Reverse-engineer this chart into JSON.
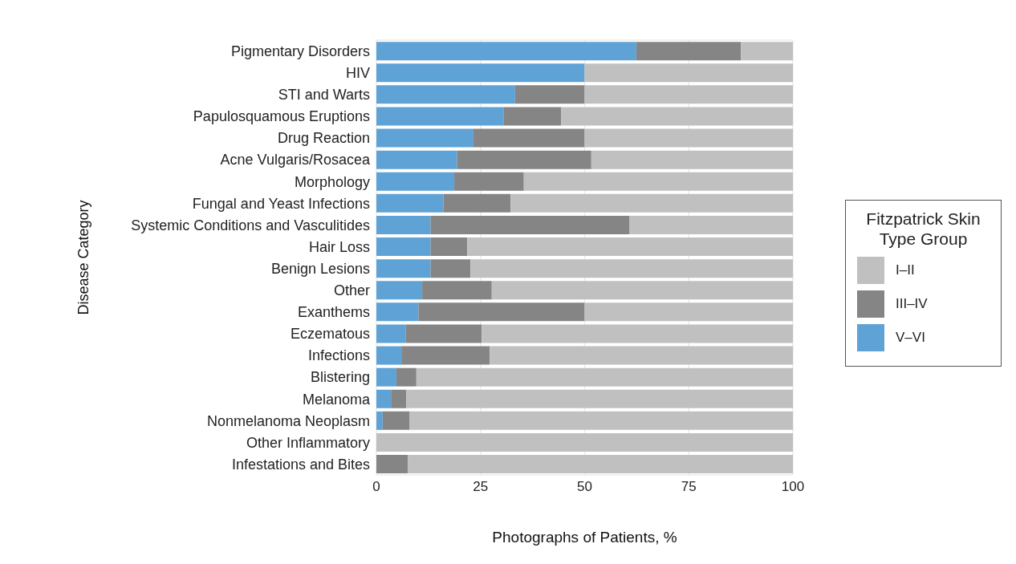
{
  "chart_data": {
    "type": "bar",
    "orientation": "horizontal",
    "stacked": true,
    "xlabel": "Photographs of Patients, %",
    "ylabel": "Disease Category",
    "legend_title": "Fitzpatrick Skin Type Group",
    "legend": "right",
    "grid": true,
    "categories": [
      "Pigmentary Disorders",
      "HIV",
      "STI and Warts",
      "Papulosquamous Eruptions",
      "Drug Reaction",
      "Acne Vulgaris/Rosacea",
      "Morphology",
      "Fungal and Yeast Infections",
      "Systemic Conditions and Vasculitides",
      "Hair Loss",
      "Benign Lesions",
      "Other",
      "Exanthems",
      "Eczematous",
      "Infections",
      "Blistering",
      "Melanoma",
      "Nonmelanoma Neoplasm",
      "Other Inflammatory",
      "Infestations and Bites"
    ],
    "series": [
      {
        "name": "V–VI",
        "color": "#5fa2d6",
        "values": [
          62.4,
          50,
          33.3,
          30.6,
          23.3,
          19.4,
          18.7,
          16.1,
          13,
          13,
          13,
          11,
          10.1,
          7,
          6,
          4.8,
          3.5,
          1.5,
          0,
          0
        ]
      },
      {
        "name": "III–IV",
        "color": "#858585",
        "values": [
          25.1,
          0,
          16.7,
          13.8,
          26.7,
          32.2,
          16.7,
          16.1,
          47.8,
          8.8,
          9.6,
          16.7,
          39.9,
          18.3,
          21.2,
          4.8,
          3.7,
          6.5,
          0,
          7.6
        ]
      },
      {
        "name": "I–II",
        "color": "#c0c0c0",
        "values": [
          12.5,
          50,
          50,
          55.6,
          50,
          48.4,
          64.6,
          67.8,
          39.2,
          78.2,
          77.4,
          72.3,
          50,
          74.7,
          72.8,
          90.4,
          92.8,
          92,
          100,
          92.4
        ]
      }
    ],
    "xlim": [
      0,
      100
    ],
    "xticks": [
      0,
      25,
      50,
      75,
      100
    ]
  }
}
